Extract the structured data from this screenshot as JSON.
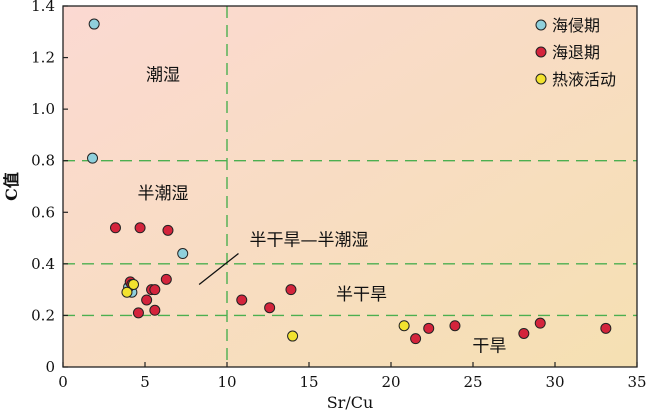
{
  "chart_data": {
    "type": "scatter",
    "title": "",
    "xlabel": "Sr/Cu",
    "ylabel": "C值",
    "xlim": [
      0,
      35
    ],
    "ylim": [
      0,
      1.4
    ],
    "xticks": [
      "0",
      "5",
      "10",
      "15",
      "20",
      "25",
      "30",
      "35"
    ],
    "yticks": [
      "0",
      "0.2",
      "0.4",
      "0.6",
      "0.8",
      "1.0",
      "1.2",
      "1.4"
    ],
    "grid": false,
    "legend_position": "top-right",
    "divider_lines": {
      "x": [
        10
      ],
      "y": [
        0.2,
        0.4,
        0.8
      ],
      "style": "dashed",
      "color": "#4caf50"
    },
    "region_labels": [
      {
        "text": "潮湿",
        "x": 6.1,
        "y": 1.13
      },
      {
        "text": "半潮湿",
        "x": 6.1,
        "y": 0.67
      },
      {
        "text": "半干旱—半潮湿",
        "x": 15,
        "y": 0.49
      },
      {
        "text": "半干旱",
        "x": 18.2,
        "y": 0.28
      },
      {
        "text": "干旱",
        "x": 26,
        "y": 0.08
      }
    ],
    "annotation_line": {
      "from": [
        8.3,
        0.32
      ],
      "to": [
        10.7,
        0.44
      ]
    },
    "background": {
      "from": "#fbd9d2",
      "to": "#f5e0b2"
    },
    "series": [
      {
        "name": "海侵期",
        "color": "#8fd0dc",
        "points": [
          [
            1.9,
            1.33
          ],
          [
            1.8,
            0.81
          ],
          [
            7.3,
            0.44
          ],
          [
            4.2,
            0.29
          ],
          [
            4.0,
            0.31
          ]
        ]
      },
      {
        "name": "海退期",
        "color": "#d4243c",
        "points": [
          [
            3.2,
            0.54
          ],
          [
            4.7,
            0.54
          ],
          [
            6.4,
            0.53
          ],
          [
            4.1,
            0.33
          ],
          [
            4.2,
            0.32
          ],
          [
            6.3,
            0.34
          ],
          [
            5.4,
            0.3
          ],
          [
            5.6,
            0.3
          ],
          [
            5.1,
            0.26
          ],
          [
            4.6,
            0.21
          ],
          [
            5.6,
            0.22
          ],
          [
            10.9,
            0.26
          ],
          [
            12.6,
            0.23
          ],
          [
            13.9,
            0.3
          ],
          [
            21.5,
            0.11
          ],
          [
            22.3,
            0.15
          ],
          [
            23.9,
            0.16
          ],
          [
            28.1,
            0.13
          ],
          [
            29.1,
            0.17
          ],
          [
            33.1,
            0.15
          ]
        ]
      },
      {
        "name": "热液活动",
        "color": "#f2e22e",
        "points": [
          [
            4.3,
            0.32
          ],
          [
            3.9,
            0.29
          ],
          [
            14.0,
            0.12
          ],
          [
            20.8,
            0.16
          ]
        ]
      }
    ]
  }
}
